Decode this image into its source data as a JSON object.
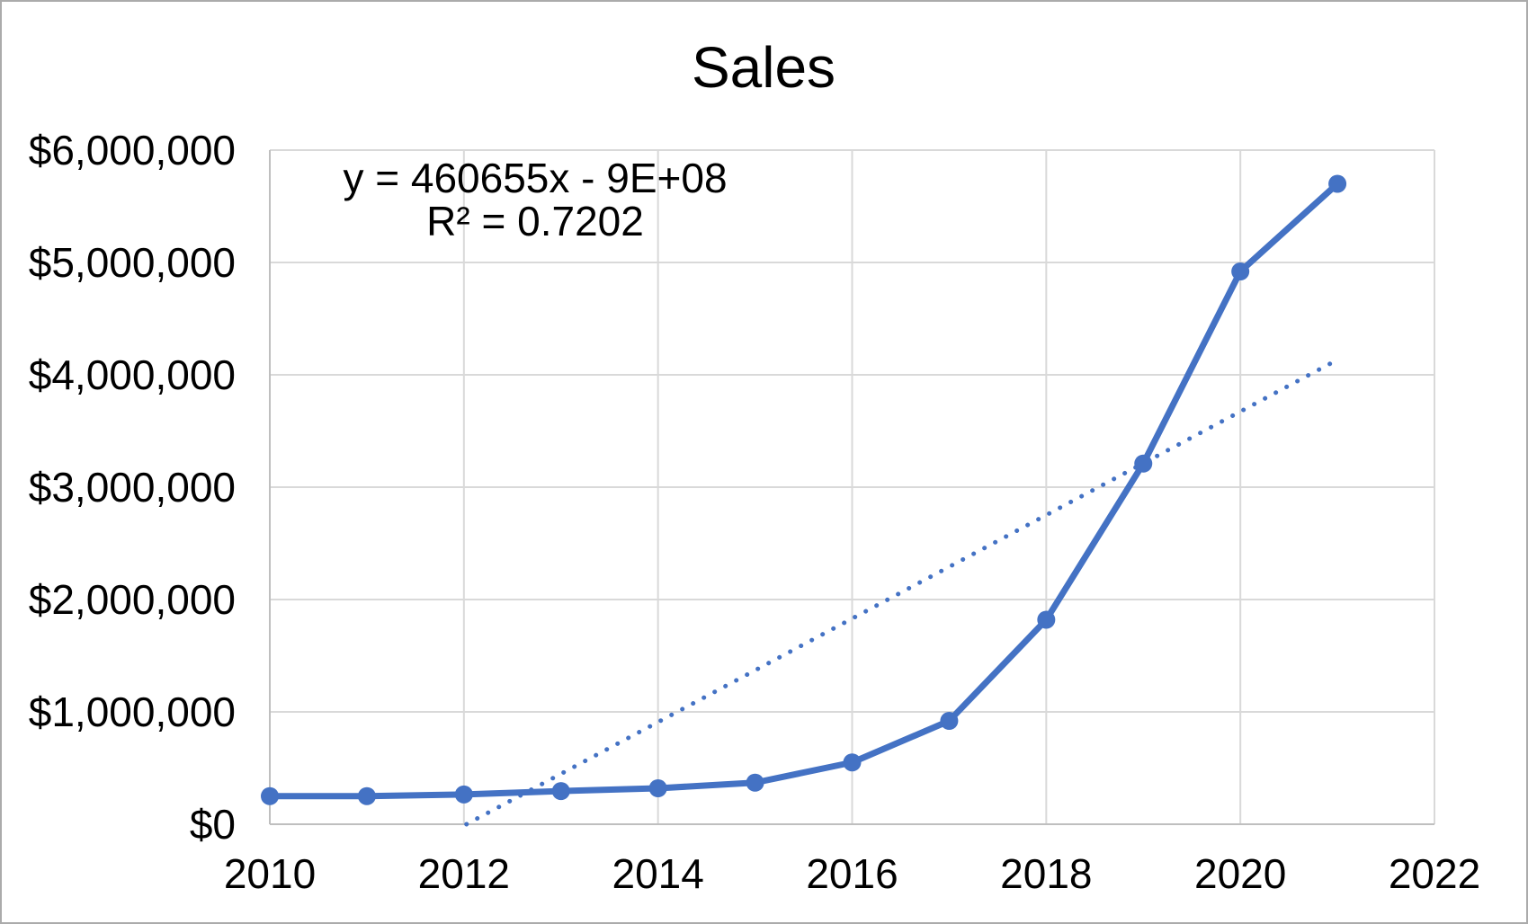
{
  "chart": {
    "title": "Sales",
    "annotation": {
      "equation": "y = 460655x - 9E+08",
      "r_squared": "R² = 0.7202"
    }
  },
  "chart_data": {
    "type": "line",
    "title": "Sales",
    "x": [
      2010,
      2011,
      2012,
      2013,
      2014,
      2015,
      2016,
      2017,
      2018,
      2019,
      2020,
      2021
    ],
    "series": [
      {
        "name": "Sales",
        "values": [
          250000,
          250000,
          265000,
          295000,
          320000,
          370000,
          550000,
          920000,
          1820000,
          3210000,
          4920000,
          5700000
        ]
      }
    ],
    "trendline": {
      "type": "linear",
      "equation": "y = 460655x - 9E+08",
      "r2": 0.7202,
      "slope": 460655,
      "intercept": -926850000,
      "style": "dotted",
      "x_end": 2021
    },
    "xlim": [
      2010,
      2022
    ],
    "ylim": [
      0,
      6000000
    ],
    "x_ticks": [
      2010,
      2012,
      2014,
      2016,
      2018,
      2020,
      2022
    ],
    "x_tick_labels": [
      "2010",
      "2012",
      "2014",
      "2016",
      "2018",
      "2020",
      "2022"
    ],
    "y_ticks": [
      0,
      1000000,
      2000000,
      3000000,
      4000000,
      5000000,
      6000000
    ],
    "y_tick_labels": [
      "$0",
      "$1,000,000",
      "$2,000,000",
      "$3,000,000",
      "$4,000,000",
      "$5,000,000",
      "$6,000,000"
    ],
    "grid": true,
    "legend": false,
    "xlabel": "",
    "ylabel": "",
    "colors": {
      "series": "#4472C4",
      "gridline": "#D9D9D9",
      "axis_line": "#BFBFBF",
      "text": "#000000",
      "background": "#FFFFFF",
      "outer_border": "#ABABAB"
    }
  }
}
